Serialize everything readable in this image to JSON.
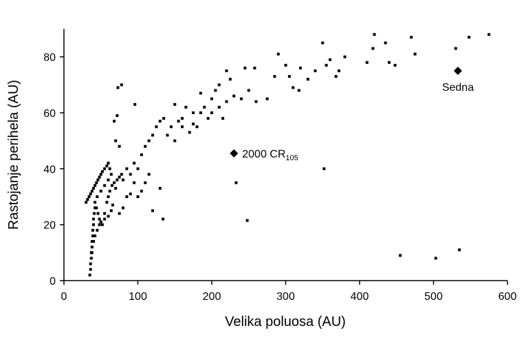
{
  "chart_data": {
    "type": "scatter",
    "x_label": "Velika poluosa (AU)",
    "y_label": "Rastojanje perihela (AU)",
    "xlim": [
      0,
      600
    ],
    "xticks": [
      0,
      100,
      200,
      300,
      400,
      500,
      600
    ],
    "ylim": [
      0,
      90
    ],
    "yticks": [
      0,
      20,
      40,
      60,
      80
    ],
    "series": [
      {
        "color": "#000000",
        "marker": "square",
        "x": [
          455,
          503,
          535,
          248,
          233,
          352,
          134,
          120,
          130,
          96,
          73,
          78,
          68,
          72,
          70,
          75,
          150,
          160,
          175,
          185,
          200,
          205,
          210,
          220,
          225,
          230,
          240,
          245,
          250,
          258,
          260,
          275,
          285,
          290,
          300,
          305,
          310,
          318,
          320,
          330,
          340,
          350,
          355,
          360,
          368,
          372,
          380,
          410,
          420,
          418,
          435,
          440,
          448,
          470,
          475,
          530,
          548,
          575,
          100,
          105,
          110,
          115,
          120,
          125,
          130,
          135,
          140,
          145,
          150,
          155,
          160,
          165,
          170,
          175,
          180,
          185,
          190,
          195,
          200,
          210,
          215,
          220,
          100,
          110,
          115,
          105,
          90,
          95,
          85,
          80,
          75,
          90,
          95,
          85,
          80,
          35,
          36,
          36,
          37,
          37,
          38,
          38,
          39,
          39,
          40,
          40,
          41,
          42,
          30,
          32,
          34,
          36,
          38,
          40,
          42,
          44,
          46,
          48,
          50,
          52,
          55,
          58,
          60,
          62,
          64,
          60,
          55,
          50,
          45,
          42,
          44,
          46,
          48,
          50,
          52,
          55,
          58,
          60,
          62,
          65,
          68,
          70,
          72,
          75,
          78,
          45,
          48,
          42,
          40,
          38,
          66,
          64,
          60,
          55
        ],
        "y": [
          9,
          8,
          11,
          21.5,
          35,
          40,
          22,
          25,
          33,
          63,
          69,
          70,
          57,
          59,
          50,
          48,
          63,
          58,
          60,
          67,
          65,
          68,
          70,
          75,
          72,
          66,
          65,
          76,
          68,
          76,
          64,
          65,
          73,
          81,
          77,
          73,
          69,
          68,
          76,
          72,
          75,
          85,
          77,
          79,
          73,
          75,
          80,
          78,
          88,
          83,
          85,
          78,
          77,
          87,
          81,
          83,
          87,
          88,
          40,
          45,
          48,
          50,
          52,
          55,
          57,
          58,
          52,
          55,
          50,
          57,
          55,
          62,
          53,
          56,
          55,
          60,
          62,
          58,
          60,
          62,
          58,
          64,
          30,
          35,
          38,
          32,
          31,
          35,
          30,
          26,
          24,
          38,
          42,
          40,
          36,
          2,
          4,
          6,
          8,
          10,
          12,
          14,
          16,
          18,
          20,
          22,
          24,
          26,
          28,
          29,
          30,
          31,
          32,
          33,
          34,
          35,
          36,
          37,
          38,
          39,
          40,
          41,
          42,
          40,
          38,
          36,
          34,
          32,
          30,
          28,
          26,
          24,
          22,
          21,
          20,
          24,
          28,
          30,
          32,
          34,
          35,
          33,
          36,
          37,
          38,
          18,
          20,
          16,
          14,
          10,
          27,
          25,
          23,
          22
        ]
      },
      {
        "color": "#000000",
        "marker": "diamond",
        "x": [
          533,
          230
        ],
        "y": [
          75,
          45.5
        ],
        "labels": [
          {
            "text": "Sedna"
          },
          {
            "text": "2000 CR",
            "sub": "105"
          }
        ]
      }
    ]
  }
}
